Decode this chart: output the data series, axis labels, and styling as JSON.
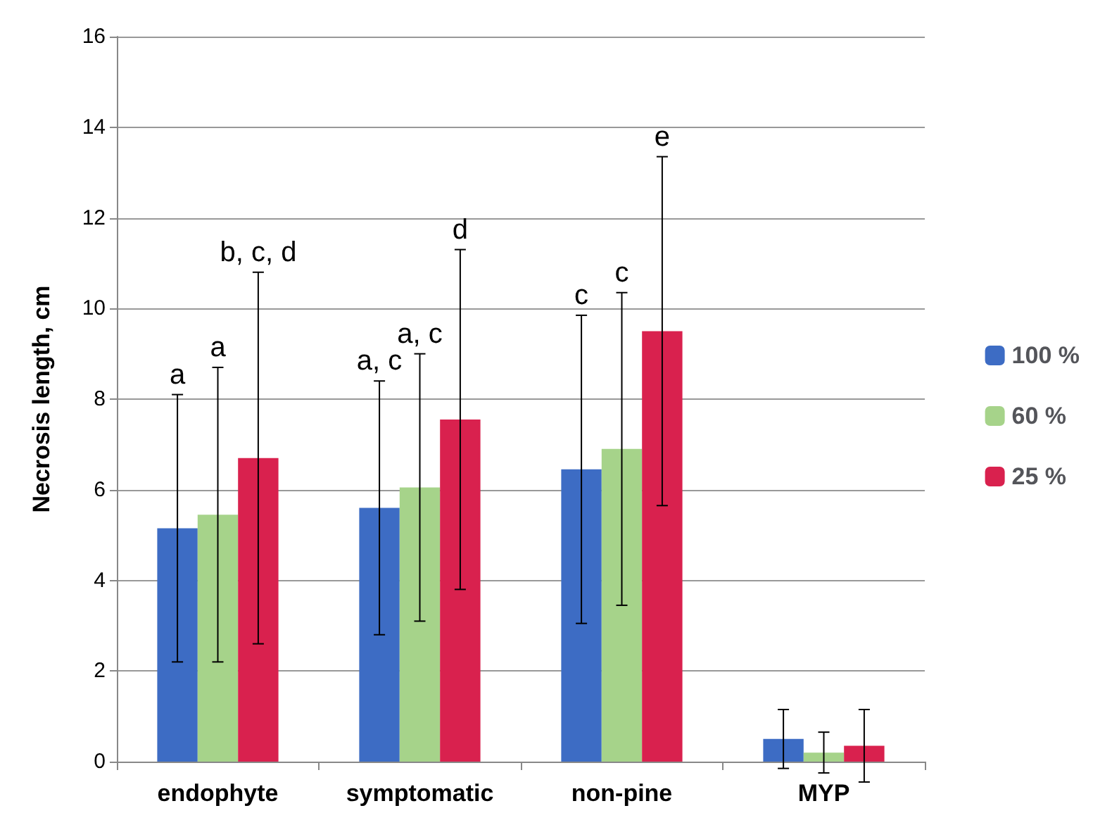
{
  "chart_data": {
    "type": "bar",
    "ylabel": "Necrosis length, cm",
    "categories": [
      "endophyte",
      "symptomatic",
      "non-pine",
      "MYP"
    ],
    "series": [
      {
        "name": "100 %",
        "color": "#3d6cc4",
        "values": [
          5.15,
          5.6,
          6.45,
          0.5
        ],
        "errors": [
          2.95,
          2.8,
          3.4,
          0.65
        ]
      },
      {
        "name": "60 %",
        "color": "#a6d38a",
        "values": [
          5.45,
          6.05,
          6.9,
          0.2
        ],
        "errors": [
          3.25,
          2.95,
          3.45,
          0.45
        ]
      },
      {
        "name": "25 %",
        "color": "#d9214e",
        "values": [
          6.7,
          7.55,
          9.5,
          0.35
        ],
        "errors": [
          4.1,
          3.75,
          3.85,
          0.8
        ]
      }
    ],
    "ylim": [
      0,
      16
    ],
    "yticks": [
      0,
      2,
      4,
      6,
      8,
      10,
      12,
      14,
      16
    ],
    "grid": "y",
    "legend": "right",
    "annotations": [
      {
        "text": "a",
        "x": "endophyte",
        "y": 8.1
      },
      {
        "text": "a",
        "x": "endophyte",
        "y": 8.7
      },
      "b, c, d",
      {
        "text": "a, c",
        "x": "symptomatic",
        "y": 8.4
      },
      {
        "text": "a, c",
        "x": "symptomatic",
        "y": 9.0
      },
      "d",
      {
        "text": "c",
        "x": "non-pine",
        "y": 9.85
      },
      {
        "text": "c",
        "x": "non-pine",
        "y": 10.35
      },
      "e"
    ]
  }
}
